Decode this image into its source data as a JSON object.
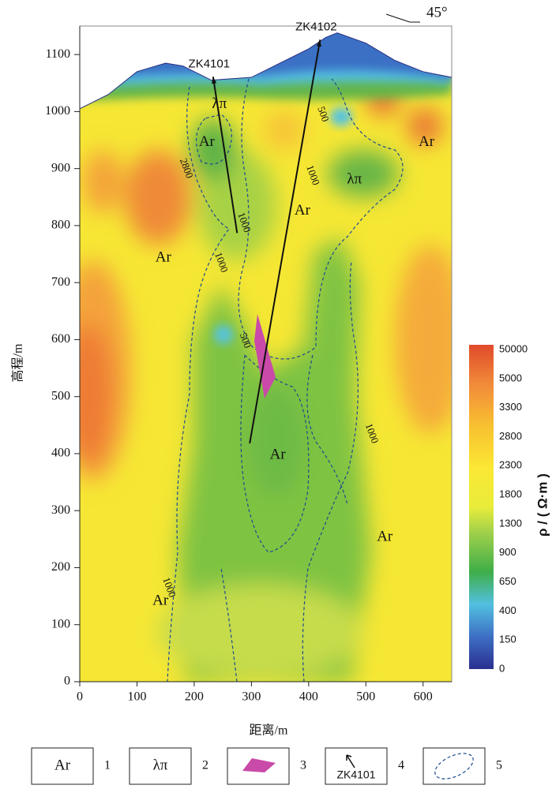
{
  "chart_data": {
    "type": "contour",
    "xlabel": "距离/m",
    "ylabel": "高程/m",
    "xlim": [
      0,
      650
    ],
    "ylim": [
      0,
      1150
    ],
    "xticks": [
      0,
      100,
      200,
      300,
      400,
      500,
      600
    ],
    "yticks": [
      0,
      100,
      200,
      300,
      400,
      500,
      600,
      700,
      800,
      900,
      1000,
      1100
    ],
    "orientation": "45°",
    "surface": {
      "x": [
        0,
        50,
        100,
        150,
        180,
        230,
        300,
        350,
        400,
        430,
        450,
        500,
        550,
        600,
        650
      ],
      "y": [
        1005,
        1030,
        1070,
        1085,
        1080,
        1055,
        1060,
        1085,
        1110,
        1130,
        1138,
        1120,
        1090,
        1070,
        1060
      ]
    },
    "boreholes": [
      {
        "name": "ZK4101",
        "x": [
          275,
          233
        ],
        "y": [
          787,
          1061
        ]
      },
      {
        "name": "ZK4102",
        "x": [
          297,
          420
        ],
        "y": [
          418,
          1126
        ]
      }
    ],
    "annotations": [
      {
        "text": "Ar",
        "x": 222,
        "y": 946
      },
      {
        "text": "Ar",
        "x": 146,
        "y": 743
      },
      {
        "text": "Ar",
        "x": 389,
        "y": 825
      },
      {
        "text": "Ar",
        "x": 606,
        "y": 946
      },
      {
        "text": "Ar",
        "x": 346,
        "y": 397
      },
      {
        "text": "Ar",
        "x": 533,
        "y": 253
      },
      {
        "text": "Ar",
        "x": 141,
        "y": 141
      },
      {
        "text": "λπ",
        "x": 244,
        "y": 1012
      },
      {
        "text": "λπ",
        "x": 480,
        "y": 880
      }
    ],
    "contour_labels": [
      {
        "text": "2800",
        "x": 185,
        "y": 900
      },
      {
        "text": "1000",
        "x": 286,
        "y": 805
      },
      {
        "text": "1000",
        "x": 246,
        "y": 735
      },
      {
        "text": "500",
        "x": 288,
        "y": 598
      },
      {
        "text": "1000",
        "x": 406,
        "y": 888
      },
      {
        "text": "500",
        "x": 424,
        "y": 995
      },
      {
        "text": "1000",
        "x": 509,
        "y": 435
      },
      {
        "text": "1000",
        "x": 155,
        "y": 165
      }
    ],
    "colorbar": {
      "label": "ρ / ( Ω·m )",
      "levels": [
        0,
        150,
        400,
        650,
        900,
        1300,
        1800,
        2300,
        2800,
        3300,
        5000,
        50000
      ]
    },
    "legend": [
      {
        "text": "Ar",
        "index": 1
      },
      {
        "text": "λπ",
        "index": 2
      },
      {
        "index": 3
      },
      {
        "text": "ZK4101",
        "index": 4
      },
      {
        "index": 5
      }
    ]
  }
}
